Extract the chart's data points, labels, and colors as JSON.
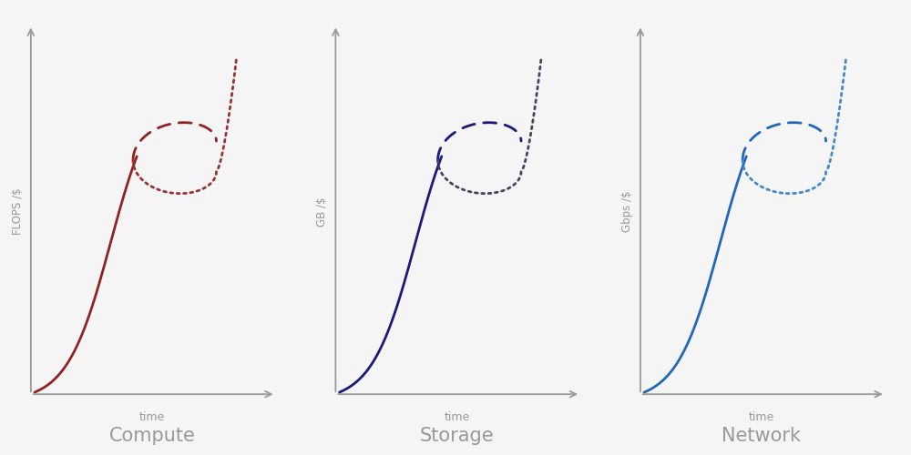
{
  "charts": [
    {
      "title": "Compute",
      "ylabel": "FLOPS /$",
      "xlabel": "time",
      "solid_color": "#922222",
      "dash_color": "#922222",
      "dot_color": "#993333"
    },
    {
      "title": "Storage",
      "ylabel": "GB /$",
      "xlabel": "time",
      "solid_color": "#1a1a7a",
      "dash_color": "#1a1a7a",
      "dot_color": "#444466"
    },
    {
      "title": "Network",
      "ylabel": "Gbps /$",
      "xlabel": "time",
      "solid_color": "#2266bb",
      "dash_color": "#2266bb",
      "dot_color": "#4488cc"
    }
  ],
  "background_color": "#f5f5f5",
  "axis_color": "#999999",
  "title_fontsize": 15,
  "label_fontsize": 9,
  "ylabel_fontsize": 8.5
}
